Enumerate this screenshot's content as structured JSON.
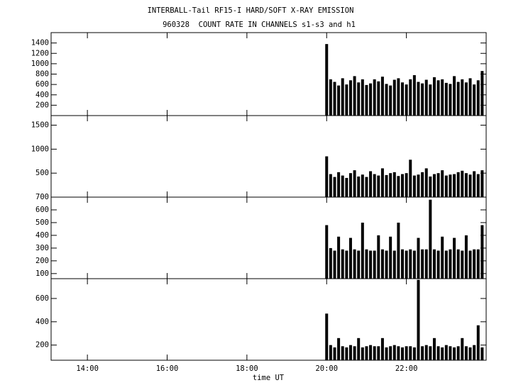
{
  "chart_data": [
    {
      "type": "bar",
      "title": "INTERBALL-Tail RF15-I HARD/SOFT X-RAY EMISSION",
      "subtitle": "960328  COUNT RATE IN CHANNELS s1-s3 and h1",
      "color": "#000000",
      "x": [
        20.0,
        20.1,
        20.2,
        20.3,
        20.4,
        20.5,
        20.6,
        20.7,
        20.8,
        20.9,
        21.0,
        21.1,
        21.2,
        21.3,
        21.4,
        21.5,
        21.6,
        21.7,
        21.8,
        21.9,
        22.0,
        22.1,
        22.2,
        22.3,
        22.4,
        22.5,
        22.6,
        22.7,
        22.8,
        22.9,
        23.0,
        23.1,
        23.2,
        23.3,
        23.4,
        23.5,
        23.6,
        23.7,
        23.8,
        23.9
      ],
      "values": [
        1380,
        700,
        650,
        580,
        720,
        600,
        680,
        760,
        640,
        700,
        590,
        620,
        700,
        660,
        750,
        610,
        580,
        690,
        720,
        640,
        600,
        700,
        780,
        650,
        620,
        690,
        600,
        740,
        680,
        700,
        630,
        610,
        760,
        650,
        700,
        640,
        720,
        600,
        680,
        860
      ],
      "ylim": [
        0,
        1600
      ],
      "yticks": [
        200,
        400,
        600,
        800,
        1000,
        1200,
        1400
      ],
      "xlim": [
        13.09,
        24.0
      ]
    },
    {
      "type": "bar",
      "color": "#000000",
      "x": [
        20.0,
        20.1,
        20.2,
        20.3,
        20.4,
        20.5,
        20.6,
        20.7,
        20.8,
        20.9,
        21.0,
        21.1,
        21.2,
        21.3,
        21.4,
        21.5,
        21.6,
        21.7,
        21.8,
        21.9,
        22.0,
        22.1,
        22.2,
        22.3,
        22.4,
        22.5,
        22.6,
        22.7,
        22.8,
        22.9,
        23.0,
        23.1,
        23.2,
        23.3,
        23.4,
        23.5,
        23.6,
        23.7,
        23.8,
        23.9
      ],
      "values": [
        850,
        480,
        420,
        520,
        450,
        400,
        500,
        560,
        430,
        470,
        420,
        540,
        480,
        450,
        600,
        460,
        500,
        520,
        440,
        480,
        500,
        780,
        450,
        470,
        520,
        600,
        430,
        480,
        500,
        560,
        450,
        470,
        480,
        520,
        550,
        500,
        470,
        540,
        480,
        560
      ],
      "ylim": [
        0,
        1700
      ],
      "yticks": [
        500,
        1000,
        1500
      ],
      "xlim": [
        13.09,
        24.0
      ]
    },
    {
      "type": "bar",
      "color": "#000000",
      "x": [
        20.0,
        20.1,
        20.2,
        20.3,
        20.4,
        20.5,
        20.6,
        20.7,
        20.8,
        20.9,
        21.0,
        21.1,
        21.2,
        21.3,
        21.4,
        21.5,
        21.6,
        21.7,
        21.8,
        21.9,
        22.0,
        22.1,
        22.2,
        22.3,
        22.4,
        22.5,
        22.6,
        22.7,
        22.8,
        22.9,
        23.0,
        23.1,
        23.2,
        23.3,
        23.4,
        23.5,
        23.6,
        23.7,
        23.8,
        23.9
      ],
      "values": [
        480,
        300,
        280,
        390,
        290,
        280,
        380,
        290,
        280,
        500,
        290,
        280,
        280,
        400,
        290,
        280,
        390,
        280,
        500,
        290,
        280,
        290,
        280,
        380,
        290,
        290,
        680,
        290,
        280,
        390,
        280,
        290,
        380,
        290,
        280,
        400,
        280,
        290,
        290,
        480
      ],
      "ylim": [
        60,
        700
      ],
      "yticks": [
        100,
        200,
        300,
        400,
        500,
        600,
        700
      ],
      "xlim": [
        13.09,
        24.0
      ]
    },
    {
      "type": "bar",
      "color": "#000000",
      "xlabel": "time UT",
      "x": [
        20.0,
        20.1,
        20.2,
        20.3,
        20.4,
        20.5,
        20.6,
        20.7,
        20.8,
        20.9,
        21.0,
        21.1,
        21.2,
        21.3,
        21.4,
        21.5,
        21.6,
        21.7,
        21.8,
        21.9,
        22.0,
        22.1,
        22.2,
        22.3,
        22.4,
        22.5,
        22.6,
        22.7,
        22.8,
        22.9,
        23.0,
        23.1,
        23.2,
        23.3,
        23.4,
        23.5,
        23.6,
        23.7,
        23.8,
        23.9
      ],
      "values": [
        470,
        200,
        180,
        260,
        190,
        180,
        200,
        190,
        260,
        180,
        190,
        200,
        190,
        190,
        260,
        180,
        190,
        200,
        190,
        180,
        190,
        190,
        180,
        760,
        190,
        200,
        190,
        260,
        190,
        180,
        200,
        190,
        180,
        190,
        260,
        190,
        180,
        200,
        370,
        180
      ],
      "ylim": [
        70,
        770
      ],
      "yticks": [
        200,
        400,
        600
      ],
      "xlim": [
        13.09,
        24.0
      ],
      "xticks": [
        {
          "value": 14,
          "label": "14:00"
        },
        {
          "value": 16,
          "label": "16:00"
        },
        {
          "value": 18,
          "label": "18:00"
        },
        {
          "value": 20,
          "label": "20:00"
        },
        {
          "value": 22,
          "label": "22:00"
        }
      ]
    }
  ]
}
